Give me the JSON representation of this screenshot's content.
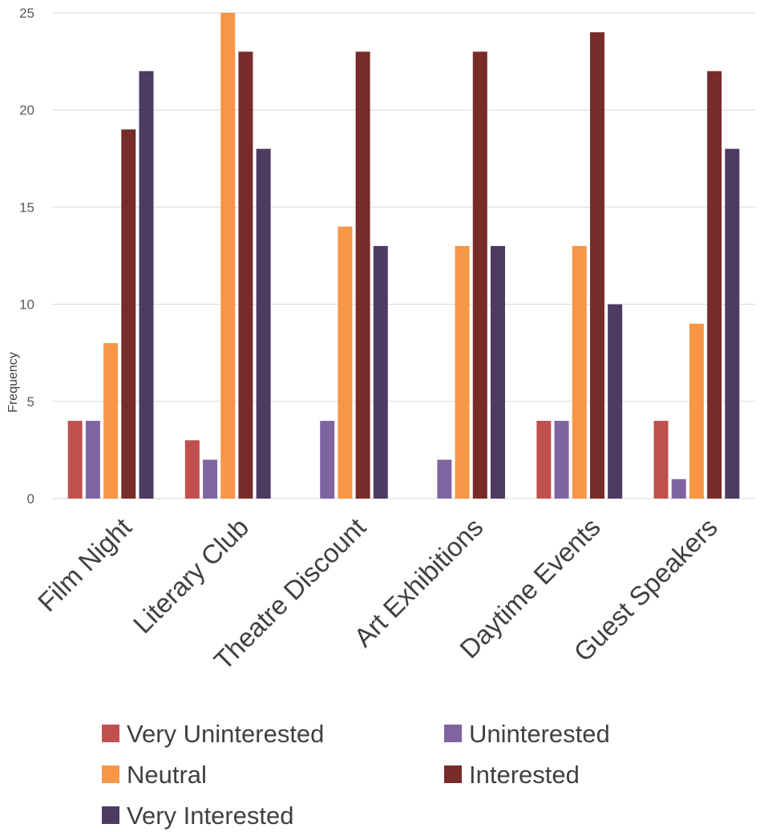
{
  "chart_data": {
    "type": "bar",
    "title": "",
    "xlabel": "",
    "ylabel": "Frequency",
    "ylim": [
      0,
      25
    ],
    "yticks": [
      "0",
      "5",
      "10",
      "15",
      "20",
      "25"
    ],
    "grid": true,
    "legend_position": "bottom",
    "categories": [
      "Film Night",
      "Literary Club",
      "Theatre Discount",
      "Art Exhibitions",
      "Daytime Events",
      "Guest Speakers"
    ],
    "series": [
      {
        "name": "Very Uninterested",
        "color": "#c0504d",
        "values": [
          4,
          3,
          0,
          0,
          4,
          4
        ]
      },
      {
        "name": "Uninterested",
        "color": "#8064a2",
        "values": [
          4,
          2,
          4,
          2,
          4,
          1
        ]
      },
      {
        "name": "Neutral",
        "color": "#f79646",
        "values": [
          8,
          25,
          14,
          13,
          13,
          9
        ]
      },
      {
        "name": "Interested",
        "color": "#772c2a",
        "values": [
          19,
          23,
          23,
          23,
          24,
          22
        ]
      },
      {
        "name": "Very Interested",
        "color": "#4d3b62",
        "values": [
          22,
          18,
          13,
          13,
          10,
          18
        ]
      }
    ]
  }
}
